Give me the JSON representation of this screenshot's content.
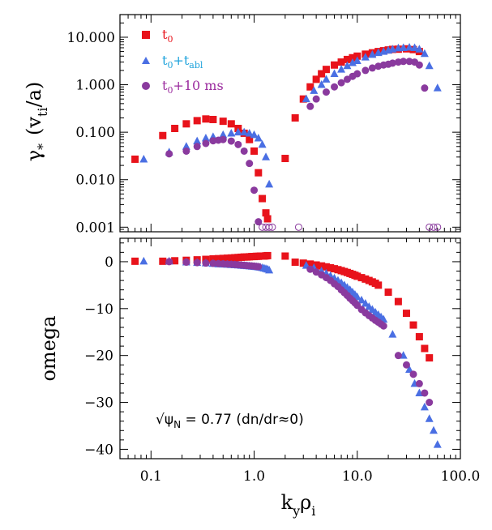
{
  "chart_data": [
    {
      "type": "scatter",
      "id": "top",
      "yscale": "log",
      "xscale": "log",
      "xlim": [
        0.05,
        100
      ],
      "ylim": [
        0.0008,
        30
      ],
      "yticks": [
        0.001,
        0.01,
        0.1,
        1,
        10
      ],
      "ytick_labels": [
        "0.001",
        "0.010",
        "0.100",
        "1.000",
        "10.000"
      ],
      "ylabel_main": "γ",
      "ylabel_star": "*",
      "ylabel_open": "(v",
      "ylabel_sub": "ti",
      "ylabel_close": "/a)",
      "legend": [
        {
          "key": "t0",
          "base": "t",
          "sub": "0",
          "plus": "",
          "base2": "",
          "sub2": "",
          "tail": "",
          "color": "#e8131b",
          "marker": "square"
        },
        {
          "key": "tabl",
          "base": "t",
          "sub": "0",
          "plus": "+",
          "base2": "t",
          "sub2": "abl",
          "tail": "",
          "color": "#1fa3dc",
          "marker": "triangle"
        },
        {
          "key": "t10",
          "base": "t",
          "sub": "0",
          "plus": "+10 ms",
          "base2": "",
          "sub2": "",
          "tail": "",
          "color": "#9b2b9e",
          "marker": "circle"
        }
      ],
      "series": [
        {
          "name": "t0",
          "color": "#e8131b",
          "marker": "square",
          "x": [
            0.07,
            0.13,
            0.17,
            0.22,
            0.28,
            0.34,
            0.4,
            0.5,
            0.6,
            0.7,
            0.8,
            0.9,
            1.0,
            1.1,
            1.2,
            1.3,
            1.35,
            2.0,
            2.5,
            3.0,
            3.5,
            4.0,
            4.5,
            5,
            6,
            7,
            8,
            9,
            10,
            12,
            14,
            16,
            18,
            20,
            22,
            25,
            30,
            35,
            40
          ],
          "y": [
            0.027,
            0.085,
            0.12,
            0.15,
            0.175,
            0.19,
            0.185,
            0.17,
            0.15,
            0.12,
            0.095,
            0.07,
            0.04,
            0.014,
            0.004,
            0.002,
            0.0015,
            0.028,
            0.2,
            0.5,
            0.9,
            1.3,
            1.7,
            2.1,
            2.6,
            3.0,
            3.4,
            3.7,
            4.0,
            4.4,
            4.7,
            5.0,
            5.2,
            5.4,
            5.55,
            5.6,
            5.7,
            5.5,
            5.0
          ]
        },
        {
          "name": "t0+tabl",
          "color": "#4a6fe3",
          "marker": "triangle",
          "x": [
            0.085,
            0.15,
            0.22,
            0.28,
            0.34,
            0.4,
            0.5,
            0.6,
            0.7,
            0.8,
            0.9,
            1.0,
            1.1,
            1.2,
            1.3,
            1.4,
            3.2,
            3.8,
            4.5,
            5,
            6,
            7,
            8,
            9,
            10,
            12,
            14,
            16,
            18,
            20,
            22,
            25,
            28,
            32,
            36,
            40,
            45,
            50,
            60
          ],
          "y": [
            0.027,
            0.038,
            0.05,
            0.065,
            0.075,
            0.08,
            0.088,
            0.095,
            0.1,
            0.1,
            0.095,
            0.088,
            0.075,
            0.055,
            0.03,
            0.008,
            0.5,
            0.75,
            1.0,
            1.3,
            1.7,
            2.1,
            2.5,
            2.9,
            3.2,
            3.8,
            4.3,
            4.7,
            5.0,
            5.3,
            5.6,
            5.9,
            6.0,
            6.1,
            6.0,
            5.6,
            4.5,
            2.5,
            0.85
          ]
        },
        {
          "name": "t0+10 ms",
          "color": "#8a3a9e",
          "marker": "circle",
          "x": [
            0.15,
            0.22,
            0.28,
            0.34,
            0.4,
            0.45,
            0.5,
            0.6,
            0.7,
            0.8,
            0.9,
            1.0,
            1.1,
            3.5,
            4,
            5,
            6,
            7,
            8,
            9,
            10,
            12,
            14,
            16,
            18,
            20,
            22,
            25,
            28,
            32,
            36,
            40,
            45
          ],
          "y": [
            0.035,
            0.04,
            0.05,
            0.058,
            0.066,
            0.068,
            0.07,
            0.065,
            0.055,
            0.04,
            0.022,
            0.006,
            0.0013,
            0.35,
            0.5,
            0.7,
            0.9,
            1.1,
            1.3,
            1.5,
            1.7,
            2.0,
            2.25,
            2.45,
            2.6,
            2.7,
            2.85,
            3.0,
            3.1,
            3.1,
            3.0,
            2.6,
            0.85
          ]
        },
        {
          "name": "t0+10 ms (open)",
          "color": "#8a3a9e",
          "marker": "open-circle",
          "x": [
            1.2,
            1.3,
            1.4,
            1.5,
            2.7,
            50,
            55,
            60
          ],
          "y": [
            0.001,
            0.001,
            0.001,
            0.001,
            0.001,
            0.001,
            0.001,
            0.001
          ]
        }
      ]
    },
    {
      "type": "scatter",
      "id": "bottom",
      "xscale": "log",
      "xlim": [
        0.05,
        100
      ],
      "ylim": [
        -42,
        5
      ],
      "yticks": [
        0,
        -10,
        -20,
        -30,
        -40
      ],
      "ytick_labels": [
        "0",
        "−10",
        "−20",
        "−30",
        "−40"
      ],
      "xticks": [
        0.1,
        1,
        10,
        100
      ],
      "xtick_labels": [
        "0.1",
        "1.0",
        "10.0",
        "100.0"
      ],
      "ylabel": "omega",
      "xlabel_k": "k",
      "xlabel_ksub": "y",
      "xlabel_rho": "ρ",
      "xlabel_rhosub": "i",
      "annotation_root": "√",
      "annotation_psi": "ψ",
      "annotation_psisub": "N",
      "annotation_tail": " = 0.77 (dn/dr≈0)",
      "series": [
        {
          "name": "t0",
          "color": "#e8131b",
          "marker": "square",
          "x": [
            0.07,
            0.13,
            0.17,
            0.22,
            0.28,
            0.34,
            0.4,
            0.45,
            0.5,
            0.55,
            0.6,
            0.65,
            0.7,
            0.75,
            0.8,
            0.85,
            0.9,
            0.95,
            1.0,
            1.05,
            1.1,
            1.15,
            1.2,
            1.25,
            1.3,
            1.35,
            2.0,
            2.5,
            3.0,
            3.5,
            4.0,
            4.5,
            5,
            5.5,
            6,
            6.5,
            7,
            7.5,
            8,
            8.5,
            9,
            9.5,
            10,
            11,
            12,
            13,
            14,
            15,
            16,
            20,
            25,
            30,
            35,
            40,
            45,
            50
          ],
          "y": [
            0.1,
            0.1,
            0.2,
            0.3,
            0.4,
            0.5,
            0.6,
            0.65,
            0.7,
            0.75,
            0.8,
            0.85,
            0.9,
            0.95,
            1.0,
            1.0,
            1.05,
            1.1,
            1.1,
            1.15,
            1.15,
            1.2,
            1.2,
            1.2,
            1.25,
            1.3,
            1.2,
            -0.1,
            -0.3,
            -0.5,
            -0.7,
            -0.9,
            -1.1,
            -1.3,
            -1.5,
            -1.7,
            -1.9,
            -2.1,
            -2.3,
            -2.5,
            -2.7,
            -2.9,
            -3.1,
            -3.4,
            -3.7,
            -4.0,
            -4.3,
            -4.6,
            -5.0,
            -6.5,
            -8.5,
            -11,
            -13.5,
            -16,
            -18.5,
            -20.5
          ]
        },
        {
          "name": "t0+tabl",
          "color": "#4a6fe3",
          "marker": "triangle",
          "x": [
            0.085,
            0.15,
            0.22,
            0.28,
            0.34,
            0.4,
            0.45,
            0.5,
            0.55,
            0.6,
            0.65,
            0.7,
            0.75,
            0.8,
            0.85,
            0.9,
            0.95,
            1.0,
            1.05,
            1.1,
            1.15,
            1.2,
            1.25,
            1.3,
            1.35,
            1.4,
            3.2,
            3.8,
            4.5,
            5,
            5.5,
            6,
            6.5,
            7,
            7.5,
            8,
            8.5,
            9,
            9.5,
            10,
            11,
            12,
            13,
            14,
            15,
            16,
            17,
            18,
            22,
            28,
            32,
            36,
            40,
            45,
            50,
            55,
            60
          ],
          "y": [
            0.1,
            0.1,
            -0.1,
            -0.2,
            -0.3,
            -0.4,
            -0.5,
            -0.55,
            -0.6,
            -0.65,
            -0.7,
            -0.75,
            -0.8,
            -0.85,
            -0.9,
            -0.95,
            -1.0,
            -1.05,
            -1.1,
            -1.15,
            -1.2,
            -1.3,
            -1.4,
            -1.5,
            -1.6,
            -1.8,
            -0.8,
            -1.3,
            -2.0,
            -2.5,
            -3.0,
            -3.5,
            -4.0,
            -4.5,
            -5.0,
            -5.5,
            -6.0,
            -6.5,
            -7.0,
            -7.5,
            -8.2,
            -8.9,
            -9.6,
            -10.2,
            -10.8,
            -11.3,
            -11.8,
            -12.3,
            -15.5,
            -20,
            -23,
            -26,
            -28,
            -31,
            -33.5,
            -36,
            -39
          ]
        },
        {
          "name": "t0+10 ms",
          "color": "#8a3a9e",
          "marker": "circle",
          "x": [
            0.15,
            0.22,
            0.28,
            0.34,
            0.4,
            0.45,
            0.5,
            0.55,
            0.6,
            0.65,
            0.7,
            0.75,
            0.8,
            0.85,
            0.9,
            0.95,
            1.0,
            1.05,
            1.1,
            3.5,
            4,
            4.5,
            5,
            5.5,
            6,
            6.5,
            7,
            7.5,
            8,
            8.5,
            9,
            9.5,
            10,
            11,
            12,
            13,
            14,
            15,
            16,
            17,
            18,
            25,
            30,
            35,
            40,
            45,
            50
          ],
          "y": [
            0.0,
            -0.1,
            -0.2,
            -0.3,
            -0.35,
            -0.4,
            -0.45,
            -0.5,
            -0.55,
            -0.6,
            -0.65,
            -0.7,
            -0.75,
            -0.8,
            -0.85,
            -0.9,
            -0.95,
            -1.0,
            -1.05,
            -1.6,
            -2.2,
            -2.8,
            -3.4,
            -4.0,
            -4.7,
            -5.3,
            -6.0,
            -6.6,
            -7.2,
            -7.8,
            -8.3,
            -8.8,
            -9.3,
            -10.2,
            -10.9,
            -11.5,
            -12.0,
            -12.5,
            -12.9,
            -13.3,
            -13.7,
            -20,
            -22,
            -24,
            -26,
            -28,
            -30
          ]
        }
      ]
    }
  ]
}
